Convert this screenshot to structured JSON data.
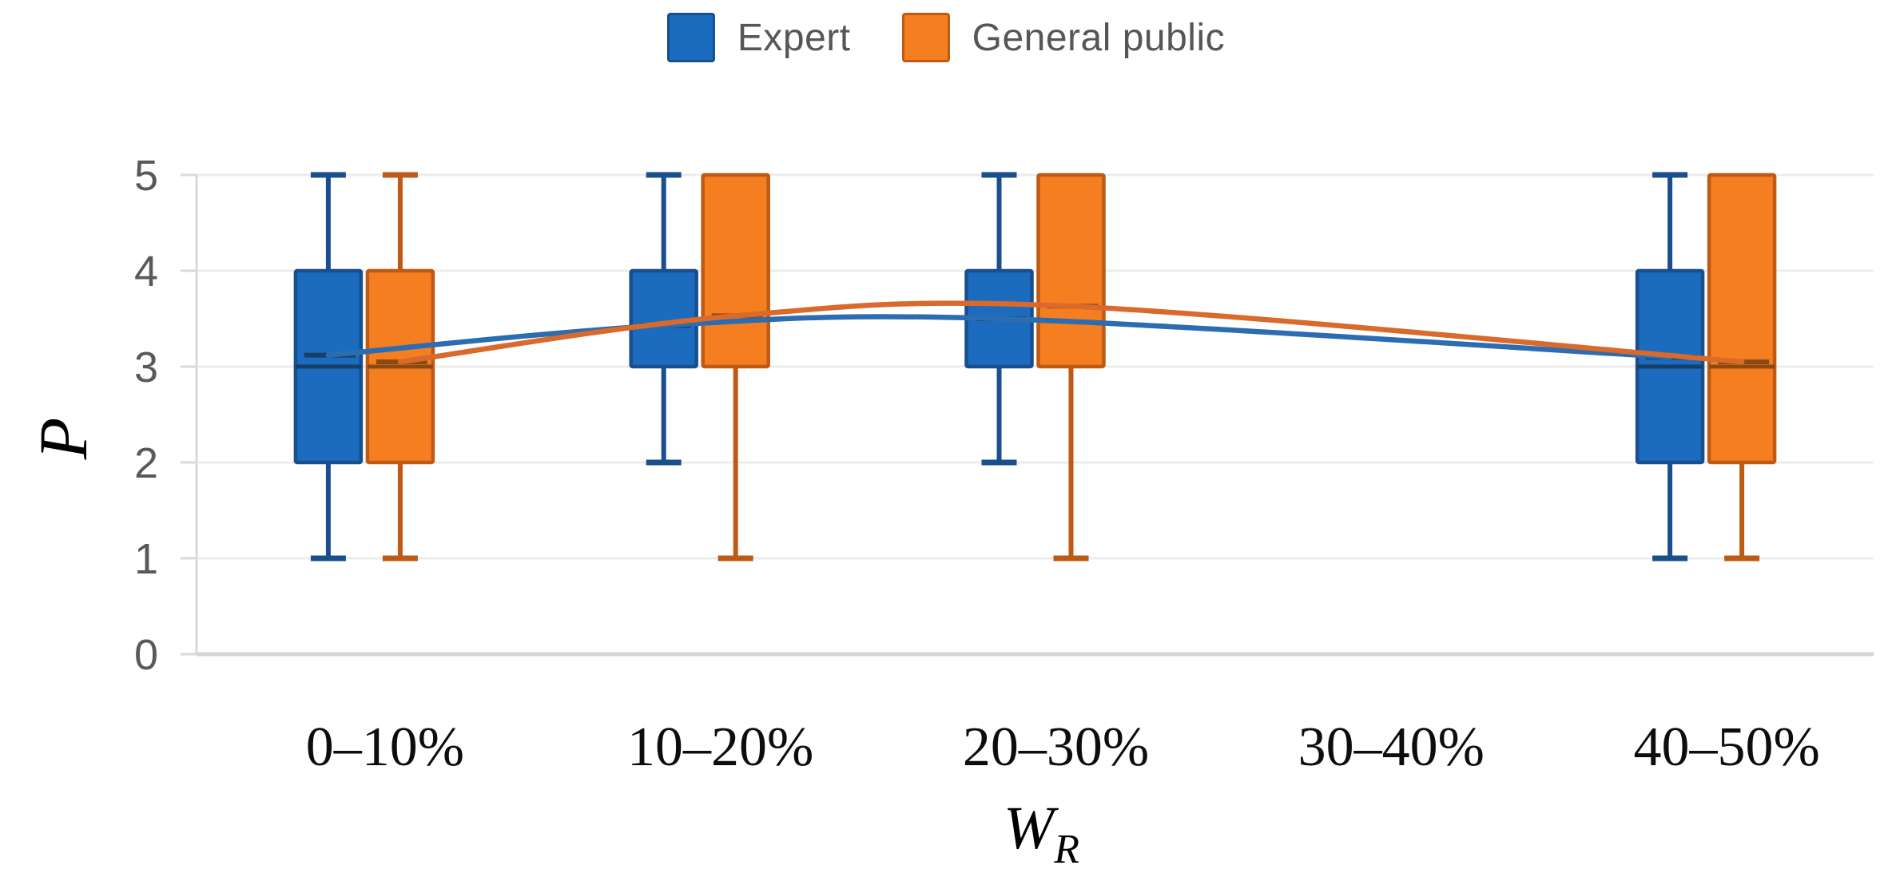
{
  "legend": [
    {
      "label": "Expert",
      "color": "#1B6BBE",
      "border": "#15508F"
    },
    {
      "label": "General public",
      "color": "#F57E20",
      "border": "#BE5A14"
    }
  ],
  "axes": {
    "y": {
      "title": "P",
      "min": 0,
      "max": 5,
      "ticks": [
        0,
        1,
        2,
        3,
        4,
        5
      ]
    },
    "x": {
      "title": "W",
      "title_sub": "R",
      "categories": [
        "0–10%",
        "10–20%",
        "20–30%",
        "30–40%",
        "40–50%"
      ]
    }
  },
  "chart_data": {
    "type": "boxplot",
    "title": "",
    "xlabel": "W_R",
    "ylabel": "P",
    "ylim": [
      0,
      5
    ],
    "grid": true,
    "legend_position": "top",
    "categories": [
      "0–10%",
      "10–20%",
      "20–30%",
      "30–40%",
      "40–50%"
    ],
    "series": [
      {
        "name": "Expert",
        "fill": "#1B6BBE",
        "edge": "#1A4E8D",
        "dark": "#163E66",
        "line_color": "#2C6CB0",
        "boxes": [
          {
            "cat": 0,
            "min": 1,
            "q1": 2,
            "median": 3,
            "q3": 4,
            "max": 5,
            "mean": 3.12
          },
          {
            "cat": 1,
            "min": 2,
            "q1": 3,
            "median": null,
            "q3": 4,
            "max": 5,
            "mean": 3.43
          },
          {
            "cat": 2,
            "min": 2,
            "q1": 3,
            "median": null,
            "q3": 4,
            "max": 5,
            "mean": 3.5
          },
          {
            "cat": 4,
            "min": 1,
            "q1": 2,
            "median": 3,
            "q3": 4,
            "max": 5,
            "mean": 3.1
          }
        ],
        "mean_line": [
          [
            0,
            3.12
          ],
          [
            1,
            3.43
          ],
          [
            2,
            3.5
          ],
          [
            4,
            3.1
          ]
        ]
      },
      {
        "name": "General public",
        "fill": "#F57E20",
        "edge": "#BE5A14",
        "dark": "#8C4A12",
        "line_color": "#D96A2B",
        "boxes": [
          {
            "cat": 0,
            "min": 1,
            "q1": 2,
            "median": 3,
            "q3": 4,
            "max": 5,
            "mean": 3.05
          },
          {
            "cat": 1,
            "min": 1,
            "q1": 3,
            "median": null,
            "q3": 5,
            "max": 5,
            "mean": 3.53
          },
          {
            "cat": 2,
            "min": 1,
            "q1": 3,
            "median": null,
            "q3": 5,
            "max": 5,
            "mean": 3.63
          },
          {
            "cat": 4,
            "min": 1,
            "q1": 2,
            "median": 3,
            "q3": 5,
            "max": 5,
            "mean": 3.05
          }
        ],
        "mean_line": [
          [
            0,
            3.05
          ],
          [
            1,
            3.53
          ],
          [
            2,
            3.63
          ],
          [
            4,
            3.05
          ]
        ]
      }
    ],
    "colors": {
      "gridline": "#ECECEC",
      "baseline": "#D6D6D6",
      "axis_line": "#D9D9D9",
      "tick_text": "#595959",
      "label_text": "#0d0d0d"
    }
  }
}
